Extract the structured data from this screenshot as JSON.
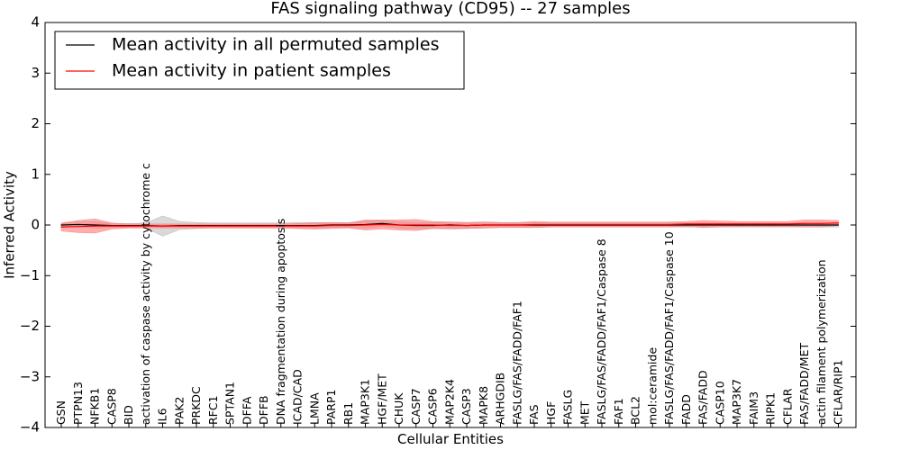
{
  "chart_data": {
    "type": "line",
    "title": "FAS signaling pathway (CD95) -- 27 samples",
    "xlabel": "Cellular Entities",
    "ylabel": "Inferred Activity",
    "ylim": [
      -4,
      4
    ],
    "yticks": [
      -4,
      -3,
      -2,
      -1,
      0,
      1,
      2,
      3,
      4
    ],
    "ytick_labels": [
      "−4",
      "−3",
      "−2",
      "−1",
      "0",
      "1",
      "2",
      "3",
      "4"
    ],
    "legend_position": "top-left",
    "categories": [
      "GSN",
      "PTPN13",
      "NFKB1",
      "CASP8",
      "BID",
      "activation of caspase activity by cytochrome c",
      "IL6",
      "PAK2",
      "PRKDC",
      "RFC1",
      "SPTAN1",
      "DFFA",
      "DFFB",
      "DNA fragmentation during apoptosis",
      "ICAD/CAD",
      "LMNA",
      "PARP1",
      "RB1",
      "MAP3K1",
      "HGF/MET",
      "CHUK",
      "CASP7",
      "CASP6",
      "MAP2K4",
      "CASP3",
      "MAPK8",
      "ARHGDIB",
      "FASLG/FAS/FADD/FAF1",
      "FAS",
      "HGF",
      "FASLG",
      "MET",
      "FASLG/FAS/FADD/FAF1/Caspase 8",
      "FAF1",
      "BCL2",
      "mol:ceramide",
      "FASLG/FAS/FADD/FAF1/Caspase 10",
      "FADD",
      "FAS/FADD",
      "CASP10",
      "MAP3K7",
      "FAIM3",
      "RIPK1",
      "CFLAR",
      "FAS/FADD/MET",
      "actin filament polymerization",
      "CFLAR/RIP1"
    ],
    "series": [
      {
        "name": "Mean activity in all permuted samples",
        "color": "#000000",
        "band_color": "#aaaaaa",
        "values": [
          0,
          0.01,
          0,
          -0.01,
          -0.01,
          -0.01,
          -0.02,
          -0.01,
          -0.01,
          -0.01,
          -0.01,
          -0.01,
          -0.01,
          -0.01,
          -0.01,
          -0.01,
          0,
          0,
          0.01,
          0.03,
          0,
          -0.01,
          -0.01,
          0,
          -0.01,
          0,
          0,
          0,
          0,
          0,
          0,
          0,
          0,
          0,
          0,
          0,
          0,
          0,
          0,
          0,
          0,
          0,
          0,
          0,
          0,
          0,
          0
        ],
        "band_half_width": [
          0.03,
          0.05,
          0.06,
          0.04,
          0.04,
          0.05,
          0.2,
          0.08,
          0.06,
          0.05,
          0.05,
          0.05,
          0.05,
          0.05,
          0.06,
          0.06,
          0.05,
          0.05,
          0.07,
          0.06,
          0.06,
          0.06,
          0.06,
          0.06,
          0.06,
          0.06,
          0.05,
          0.05,
          0.05,
          0.04,
          0.04,
          0.04,
          0.04,
          0.04,
          0.04,
          0.04,
          0.04,
          0.04,
          0.04,
          0.04,
          0.04,
          0.04,
          0.04,
          0.04,
          0.04,
          0.04,
          0.04
        ]
      },
      {
        "name": "Mean activity in patient samples",
        "color": "#ff0000",
        "band_color": "#ff7777",
        "values": [
          -0.04,
          -0.03,
          -0.02,
          -0.02,
          -0.02,
          -0.02,
          -0.02,
          -0.02,
          -0.02,
          -0.02,
          -0.02,
          -0.02,
          -0.02,
          -0.02,
          -0.02,
          -0.02,
          -0.01,
          -0.01,
          0,
          0.01,
          0,
          0,
          0,
          -0.01,
          -0.01,
          0,
          0,
          0,
          0.01,
          0.01,
          0.01,
          0.01,
          0.01,
          0.01,
          0.01,
          0.01,
          0.01,
          0.02,
          0.02,
          0.02,
          0.02,
          0.02,
          0.02,
          0.02,
          0.03,
          0.03,
          0.04
        ],
        "band_half_width": [
          0.08,
          0.12,
          0.14,
          0.06,
          0.04,
          0.04,
          0.04,
          0.04,
          0.04,
          0.04,
          0.04,
          0.04,
          0.04,
          0.04,
          0.05,
          0.06,
          0.06,
          0.05,
          0.1,
          0.09,
          0.1,
          0.11,
          0.07,
          0.07,
          0.06,
          0.06,
          0.05,
          0.05,
          0.06,
          0.05,
          0.05,
          0.05,
          0.05,
          0.05,
          0.05,
          0.05,
          0.05,
          0.05,
          0.07,
          0.06,
          0.05,
          0.05,
          0.05,
          0.05,
          0.07,
          0.07,
          0.05
        ]
      }
    ]
  }
}
